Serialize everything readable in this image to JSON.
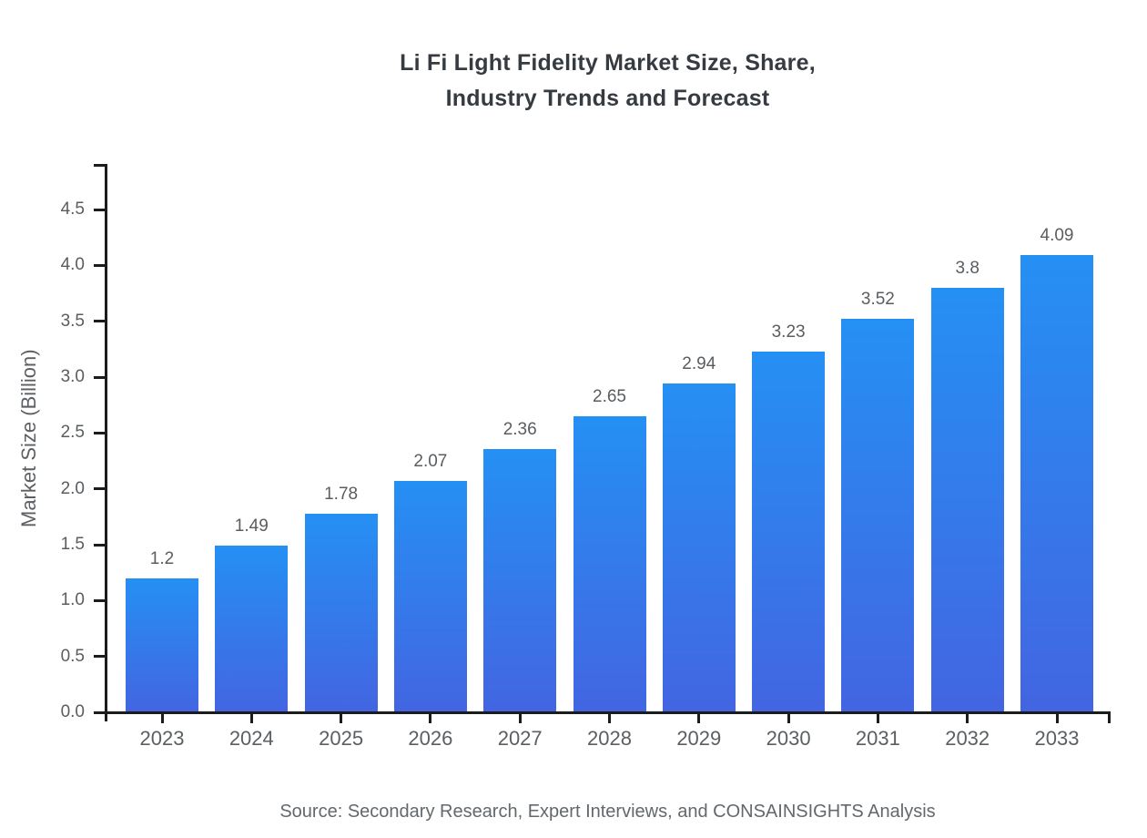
{
  "chart_data": {
    "type": "bar",
    "title_lines": [
      "Li Fi Light Fidelity Market Size, Share,",
      "Industry Trends and Forecast"
    ],
    "title": "Li Fi Light Fidelity Market Size, Share, Industry Trends and Forecast",
    "categories": [
      "2023",
      "2024",
      "2025",
      "2026",
      "2027",
      "2028",
      "2029",
      "2030",
      "2031",
      "2032",
      "2033"
    ],
    "values": [
      1.2,
      1.49,
      1.78,
      2.07,
      2.36,
      2.65,
      2.94,
      3.23,
      3.52,
      3.8,
      4.09
    ],
    "value_labels": [
      "1.2",
      "1.49",
      "1.78",
      "2.07",
      "2.36",
      "2.65",
      "2.94",
      "3.23",
      "3.52",
      "3.8",
      "4.09"
    ],
    "xlabel": "",
    "ylabel": "Market Size (Billion)",
    "ylim": [
      0,
      4.9
    ],
    "yticks": [
      0.0,
      0.5,
      1.0,
      1.5,
      2.0,
      2.5,
      3.0,
      3.5,
      4.0,
      4.5
    ],
    "ytick_labels": [
      "0.0",
      "0.5",
      "1.0",
      "1.5",
      "2.0",
      "2.5",
      "3.0",
      "3.5",
      "4.0",
      "4.5"
    ],
    "grid": false,
    "legend": null,
    "source": "Source: Secondary Research, Expert Interviews, and CONSAINSIGHTS Analysis",
    "colors": {
      "bar_gradient_top": "#2590f4",
      "bar_gradient_bottom": "#4365e2",
      "axis": "#1b1c1e",
      "tick_label": "#595d60",
      "title": "#363b41"
    }
  }
}
